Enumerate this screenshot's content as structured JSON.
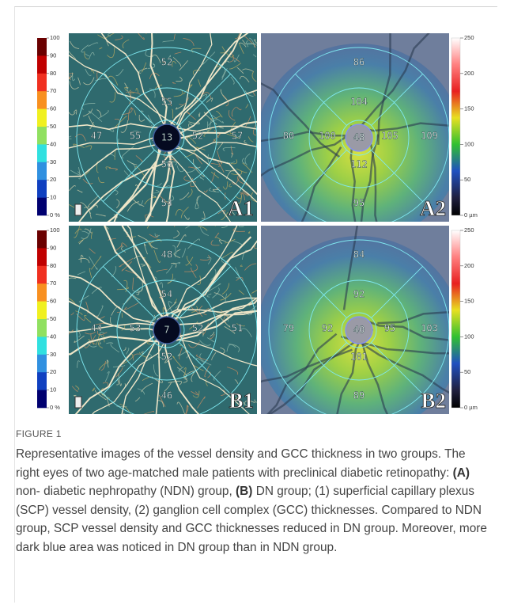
{
  "panels": [
    {
      "label": "A1",
      "numbers": [
        52,
        55,
        47,
        55,
        13,
        52,
        57,
        56,
        54
      ]
    },
    {
      "label": "A2",
      "numbers": [
        86,
        104,
        80,
        100,
        48,
        105,
        109,
        112,
        95
      ]
    },
    {
      "label": "B1",
      "numbers": [
        48,
        54,
        44,
        53,
        7,
        52,
        51,
        52,
        46
      ]
    },
    {
      "label": "B2",
      "numbers": [
        84,
        92,
        79,
        92,
        40,
        95,
        103,
        101,
        89
      ]
    }
  ],
  "density_scale": [
    "100",
    "90",
    "80",
    "70",
    "60",
    "50",
    "40",
    "30",
    "20",
    "10",
    "0 %"
  ],
  "thickness_scale": [
    "250",
    "200",
    "150",
    "100",
    "50",
    "0 µm"
  ],
  "figure_label": "FIGURE 1",
  "caption": [
    "Representative images of the vessel density and GCC thickness in two groups. The right eyes of two age-matched male patients with preclinical diabetic retinopathy: ",
    "(A)",
    " non- diabetic nephropathy (NDN) group, ",
    "(B)",
    " DN group; (1) superficial capillary plexus (SCP) vessel density, (2) ganglion cell complex (GCC) thicknesses. Compared to NDN group, SCP vessel density and GCC thicknesses reduced in DN group. Moreover, more dark blue area was noticed in DN group than in NDN group."
  ]
}
